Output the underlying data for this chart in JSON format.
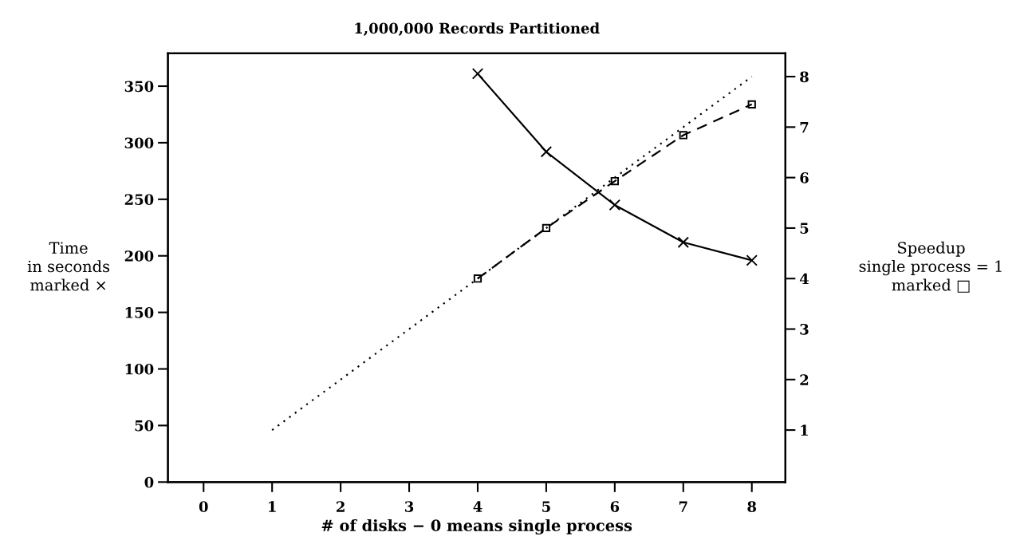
{
  "chart_data": {
    "type": "line",
    "title": "1,000,000 Records Partitioned",
    "xlabel": "# of disks − 0 means single process",
    "ylabel": "Time\nin seconds\nmarked ×",
    "y2label": "Speedup\nsingle process = 1\nmarked □",
    "x": [
      4,
      5,
      6,
      7,
      8
    ],
    "series": [
      {
        "color": "#000000",
        "values": [
          361,
          292,
          245,
          212,
          196
        ],
        "marker": "cross",
        "line_style": "solid"
      },
      {
        "color": "#000000",
        "values": [
          4.0,
          5.0,
          5.93,
          6.84,
          7.45
        ],
        "marker": "square",
        "line_style": "dashed",
        "axis": "y2"
      },
      {
        "color": "#000000",
        "x": [
          1,
          8
        ],
        "values": [
          1,
          8
        ],
        "marker": "none",
        "line_style": "dotted",
        "axis": "y2"
      }
    ],
    "xlim": [
      -0.52,
      8.49
    ],
    "xticks": [
      0,
      1,
      2,
      3,
      4,
      5,
      6,
      7,
      8
    ],
    "ylim": [
      0,
      379
    ],
    "yticks": [
      0,
      50,
      100,
      150,
      200,
      250,
      300,
      350
    ],
    "y2lim": [
      -0.03,
      8.46
    ],
    "y2ticks": [
      1,
      2,
      3,
      4,
      5,
      6,
      7,
      8
    ],
    "grid": false,
    "legend": false
  }
}
